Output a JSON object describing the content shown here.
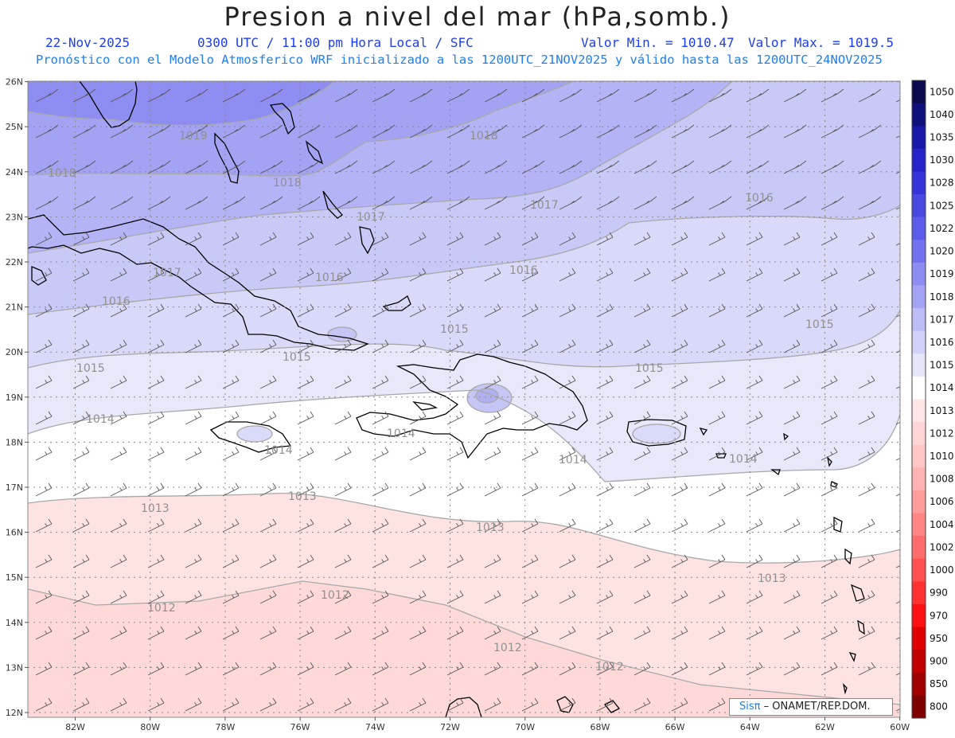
{
  "header": {
    "title": "Presion a nivel del mar (hPa,somb.)",
    "date": "22-Nov-2025",
    "time": "0300 UTC / 11:00 pm Hora Local / SFC",
    "valmin": "Valor Min. = 1010.47",
    "valmax": "Valor Max. = 1019.5",
    "model": "Pronóstico con el Modelo Atmosferico WRF inicializado a las 1200UTC_21NOV2025 y válido hasta las  1200UTC_24NOV2025"
  },
  "credit": {
    "brand": "Sisπ",
    "org": " – ONAMET/REP.DOM."
  },
  "map": {
    "lat_labels": [
      "12N",
      "13N",
      "14N",
      "15N",
      "16N",
      "17N",
      "18N",
      "19N",
      "20N",
      "21N",
      "22N",
      "23N",
      "24N",
      "25N",
      "26N"
    ],
    "lon_labels": [
      "82W",
      "80W",
      "78W",
      "76W",
      "74W",
      "72W",
      "70W",
      "68W",
      "66W",
      "64W",
      "62W",
      "60W"
    ],
    "grid": "dotted",
    "contour_labels": [
      "1012",
      "1012",
      "1012",
      "1012",
      "1013",
      "1013",
      "1013",
      "1013",
      "1014",
      "1014",
      "1014",
      "1014",
      "1014",
      "1015",
      "1015",
      "1015",
      "1015",
      "1015",
      "1016",
      "1016",
      "1016",
      "1016",
      "1017",
      "1017",
      "1017",
      "1018",
      "1018",
      "1018",
      "1019"
    ]
  },
  "colorbar": {
    "levels": [
      "1050",
      "1040",
      "1035",
      "1030",
      "1028",
      "1025",
      "1022",
      "1020",
      "1019",
      "1018",
      "1017",
      "1016",
      "1015",
      "1014",
      "1013",
      "1012",
      "1010",
      "1008",
      "1006",
      "1004",
      "1002",
      "1000",
      "990",
      "970",
      "950",
      "900",
      "850",
      "800"
    ],
    "colors": [
      "#0a0a4e",
      "#10107d",
      "#1818a8",
      "#2424c8",
      "#3434d8",
      "#4848e2",
      "#5c5cea",
      "#7272f0",
      "#8c8cf2",
      "#a4a4f5",
      "#bcbcf7",
      "#d2d2f9",
      "#e6e6fb",
      "#ffffff",
      "#ffe6e6",
      "#ffd6d6",
      "#ffc6c6",
      "#ffb2b2",
      "#ff9c9c",
      "#ff8484",
      "#ff6c6c",
      "#ff5050",
      "#ff3030",
      "#ff1010",
      "#e00000",
      "#c00000",
      "#a00000",
      "#800000"
    ]
  }
}
